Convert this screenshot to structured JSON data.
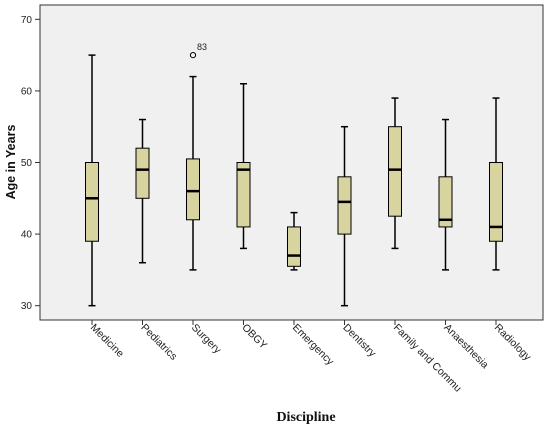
{
  "chart_data": {
    "type": "boxplot",
    "xlabel": "Discipline",
    "ylabel": "Age in Years",
    "ylim": [
      28,
      72
    ],
    "yticks": [
      30,
      40,
      50,
      60,
      70
    ],
    "grid": false,
    "colors": {
      "box_fill": "#d8d4a0",
      "plot_bg": "#f0f0f0",
      "stroke": "#000000"
    },
    "categories": [
      "Medicine",
      "Pediatrics",
      "Surgery",
      "OBGY",
      "Emergency",
      "Dentistry",
      "Family and Commu",
      "Anaesthesia",
      "Radiology"
    ],
    "boxes": [
      {
        "min": 30,
        "q1": 39,
        "median": 45,
        "q3": 50,
        "max": 65
      },
      {
        "min": 36,
        "q1": 45,
        "median": 49,
        "q3": 52,
        "max": 56
      },
      {
        "min": 35,
        "q1": 42,
        "median": 46,
        "q3": 50.5,
        "max": 62,
        "outliers": [
          {
            "value": 65,
            "label": "83"
          }
        ]
      },
      {
        "min": 38,
        "q1": 41,
        "median": 49,
        "q3": 50,
        "max": 61
      },
      {
        "min": 35,
        "q1": 35.5,
        "median": 37,
        "q3": 41,
        "max": 43
      },
      {
        "min": 30,
        "q1": 40,
        "median": 44.5,
        "q3": 48,
        "max": 55
      },
      {
        "min": 38,
        "q1": 42.5,
        "median": 49,
        "q3": 55,
        "max": 59
      },
      {
        "min": 35,
        "q1": 41,
        "median": 42,
        "q3": 48,
        "max": 56
      },
      {
        "min": 35,
        "q1": 39,
        "median": 41,
        "q3": 50,
        "max": 59
      }
    ]
  }
}
